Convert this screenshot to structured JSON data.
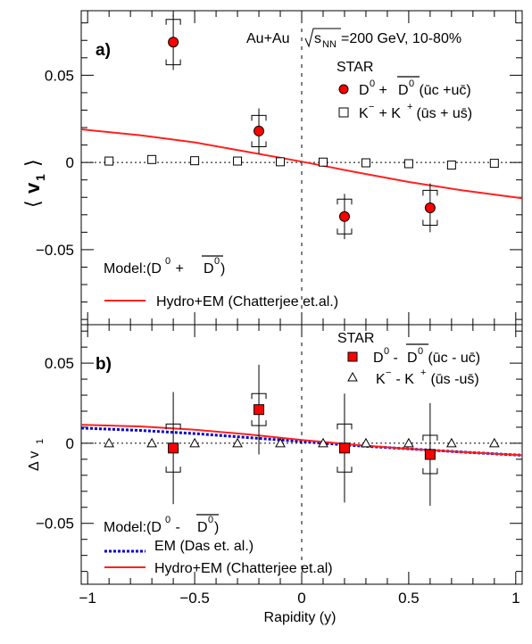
{
  "chart_data": [
    {
      "panel_label": "a)",
      "type": "scatter",
      "ylabel": "v",
      "ylabel_sub": "1",
      "ylim": [
        -0.093,
        0.087
      ],
      "xlim": [
        -1.03,
        1.03
      ],
      "grid": false,
      "yticks": [
        -0.05,
        0,
        0.05
      ],
      "ytick_labels": [
        "−0.05",
        "0",
        "0.05"
      ],
      "annotations": {
        "collision": "Au+Au",
        "energy_prefix": "s",
        "energy_sub": "NN",
        "energy_suffix": "=200 GeV, 10-80%",
        "experiment": "STAR",
        "model_prefix": "Model:(D",
        "model_sup": "0",
        "model_plus": " + ",
        "model_dbar": "D",
        "model_dbar_sup": "0",
        "model_close": ")"
      },
      "series": [
        {
          "name": "D⁰ + D̄⁰ (ūc + uc̄)",
          "legend_text": "D",
          "legend_sup": "0",
          "legend_mid": " + ",
          "legend_dbar": "D",
          "legend_dbar_sup": "0",
          "legend_tail": " (ūc +uc̄)",
          "marker": "circle",
          "color": "#ff0000",
          "x": [
            -0.6,
            -0.2,
            0.2,
            0.6
          ],
          "y": [
            0.069,
            0.018,
            -0.031,
            -0.026
          ],
          "stat_err": [
            0.016,
            0.013,
            0.013,
            0.014
          ],
          "sys_err": [
            0.013,
            0.009,
            0.01,
            0.01
          ]
        },
        {
          "name": "K⁻ + K⁺ (ūs + us̄)",
          "legend_text": "K",
          "legend_sup1": "−",
          "legend_mid": " + K",
          "legend_sup2": "+",
          "legend_tail": " (ūs + us̄)",
          "marker": "open-square",
          "color": "#000000",
          "x": [
            -0.9,
            -0.7,
            -0.5,
            -0.3,
            -0.1,
            0.1,
            0.3,
            0.5,
            0.7,
            0.9
          ],
          "y": [
            0.0008,
            0.0017,
            0.001,
            0.0008,
            0.0004,
            0.0002,
            -0.0002,
            -0.0007,
            -0.0015,
            -0.0005
          ]
        },
        {
          "name": "Hydro+EM (Chatterjee et.al.)",
          "marker": "line",
          "color": "#ff2020",
          "x": [
            -1.03,
            -0.75,
            -0.5,
            -0.25,
            0,
            0.25,
            0.5,
            0.75,
            1.03
          ],
          "y": [
            0.019,
            0.0155,
            0.0115,
            0.006,
            0.0005,
            -0.0055,
            -0.0112,
            -0.016,
            -0.0205
          ]
        }
      ]
    },
    {
      "panel_label": "b)",
      "type": "scatter",
      "xlabel": "Rapidity (y)",
      "ylabel": "Δ v",
      "ylabel_sub": "1",
      "ylim": [
        -0.088,
        0.074
      ],
      "xlim": [
        -1.03,
        1.03
      ],
      "grid": false,
      "xticks": [
        -1,
        -0.5,
        0,
        0.5,
        1
      ],
      "xtick_labels": [
        "−1",
        "−0.5",
        "0",
        "0.5",
        "1"
      ],
      "yticks": [
        -0.05,
        0,
        0.05
      ],
      "ytick_labels": [
        "−0.05",
        "0",
        "0.05"
      ],
      "annotations": {
        "experiment": "STAR",
        "model_prefix": "Model:(D",
        "model_sup": "0",
        "model_minus": " - ",
        "model_dbar": "D",
        "model_dbar_sup": "0",
        "model_close": ")"
      },
      "series": [
        {
          "name": "D⁰ - D̄⁰ (ūc - uc̄)",
          "legend_text": "D",
          "legend_sup": "0",
          "legend_mid": " - ",
          "legend_dbar": "D",
          "legend_dbar_sup": "0",
          "legend_tail": " (ūc - uc̄)",
          "marker": "square",
          "color": "#ff0000",
          "x": [
            -0.6,
            -0.2,
            0.2,
            0.6
          ],
          "y": [
            -0.003,
            0.021,
            -0.003,
            -0.007
          ],
          "stat_err": [
            0.035,
            0.028,
            0.034,
            0.032
          ],
          "sys_err": [
            0.015,
            0.01,
            0.015,
            0.012
          ]
        },
        {
          "name": "K⁻ - K⁺ (ūs - us̄)",
          "legend_text": "K",
          "legend_sup1": "−",
          "legend_mid": " - K",
          "legend_sup2": "+",
          "legend_tail": " (ūs -us̄)",
          "marker": "open-triangle",
          "color": "#000000",
          "x": [
            -0.9,
            -0.7,
            -0.5,
            -0.3,
            -0.1,
            0.1,
            0.3,
            0.5,
            0.7,
            0.9
          ],
          "y": [
            0.0,
            0.0,
            0.0,
            0.0,
            0.0,
            0.0,
            0.0,
            0.0,
            0.0,
            0.0
          ]
        },
        {
          "name": "EM (Das et. al.)",
          "marker": "dotted-line",
          "color": "#0000cc",
          "x": [
            -1.03,
            -0.75,
            -0.5,
            -0.25,
            0,
            0.25,
            0.5,
            0.75,
            1.03
          ],
          "y": [
            0.0095,
            0.008,
            0.006,
            0.0035,
            0.001,
            -0.0015,
            -0.0035,
            -0.0055,
            -0.0075
          ]
        },
        {
          "name": "Hydro+EM (Chatterjee et.al)",
          "marker": "line",
          "color": "#ff2020",
          "x": [
            -1.03,
            -0.75,
            -0.5,
            -0.25,
            0,
            0.25,
            0.5,
            0.75,
            1.03
          ],
          "y": [
            0.0115,
            0.0105,
            0.0085,
            0.0055,
            0.002,
            -0.001,
            -0.0035,
            -0.0055,
            -0.0075
          ]
        }
      ]
    }
  ]
}
